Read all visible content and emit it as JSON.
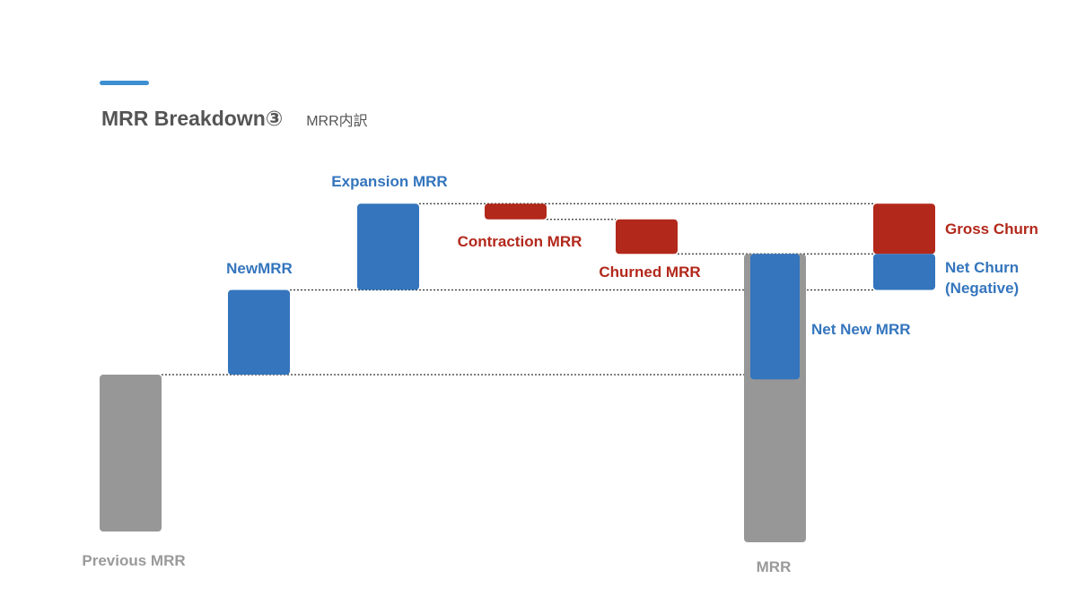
{
  "slide": {
    "title": "MRR Breakdown③",
    "subtitle": "MRR内訳"
  },
  "colors": {
    "accent": "#3d8fd1",
    "gray": "#979797",
    "blue": "#3475bd",
    "red": "#b2281b",
    "title": "#555555",
    "gray_label": "#9a9a9a"
  },
  "chart_data": {
    "type": "bar",
    "subtype": "waterfall",
    "title": "MRR Breakdown③",
    "subtitle": "MRR内訳",
    "grid": false,
    "axes_visible": false,
    "units": "relative (no axis shown)",
    "steps": [
      {
        "label": "Previous MRR",
        "kind": "total",
        "start": 0,
        "end": 5.0,
        "color": "gray"
      },
      {
        "label": "NewMRR",
        "kind": "increase",
        "start": 5.0,
        "end": 7.7,
        "color": "blue"
      },
      {
        "label": "Expansion MRR",
        "kind": "increase",
        "start": 7.7,
        "end": 10.45,
        "color": "blue"
      },
      {
        "label": "Contraction MRR",
        "kind": "decrease",
        "start": 10.45,
        "end": 9.95,
        "color": "red"
      },
      {
        "label": "Churned MRR",
        "kind": "decrease",
        "start": 9.95,
        "end": 8.85,
        "color": "red"
      },
      {
        "label": "MRR",
        "kind": "total",
        "start": 0,
        "end": 8.85,
        "color": "gray",
        "overlay": {
          "label": "Net New MRR",
          "start": 4.85,
          "end": 8.85,
          "color": "blue"
        }
      },
      {
        "label": "Gross Churn",
        "kind": "stacked-top",
        "start": 8.85,
        "end": 10.45,
        "color": "red"
      },
      {
        "label": "Net Churn\n(Negative)",
        "kind": "stacked-bottom",
        "start": 7.7,
        "end": 8.85,
        "color": "blue"
      }
    ],
    "connectors": [
      {
        "from": "Previous MRR",
        "to": "MRR",
        "level": 5.0
      },
      {
        "from": "NewMRR",
        "to": "Net Churn\n(Negative)",
        "level": 7.7
      },
      {
        "from": "Expansion MRR",
        "to": "Gross Churn",
        "level": 10.45
      },
      {
        "from": "Contraction MRR",
        "to": "Churned MRR",
        "level": 9.95
      },
      {
        "from": "Churned MRR",
        "to": "Gross Churn",
        "level": 8.85
      }
    ]
  }
}
